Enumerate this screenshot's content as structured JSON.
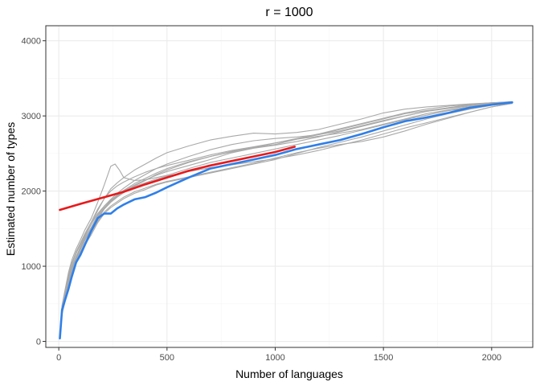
{
  "chart_data": {
    "type": "line",
    "title": "r = 1000",
    "xlabel": "Number of languages",
    "ylabel": "Estimated number of types",
    "xlim": [
      -60,
      2190
    ],
    "ylim": [
      -80,
      4200
    ],
    "x_ticks": [
      0,
      500,
      1000,
      1500,
      2000
    ],
    "y_ticks": [
      0,
      1000,
      2000,
      3000,
      4000
    ],
    "x_tick_labels": [
      "0",
      "500",
      "1000",
      "1500",
      "2000"
    ],
    "y_tick_labels": [
      "0",
      "1000",
      "2000",
      "3000",
      "4000"
    ],
    "grid": true,
    "legend": "none",
    "colors": {
      "samples": "#a9a9a9",
      "mean": "#2f7fe8",
      "extrapolation": "#e8191b",
      "panel_border": "#333333",
      "grid_major": "#ebebeb",
      "grid_minor": "#f5f5f5"
    },
    "series": [
      {
        "role": "sample",
        "color": "#a9a9a9",
        "x": [
          5,
          15,
          30,
          45,
          60,
          80,
          100,
          120,
          150,
          180,
          210,
          240,
          260,
          280,
          300,
          350,
          400,
          450,
          500,
          600,
          700,
          800,
          900,
          1000,
          1100,
          1200,
          1300,
          1400,
          1500,
          1600,
          1700,
          1800,
          1900,
          2000,
          2095
        ],
        "y": [
          80,
          480,
          700,
          920,
          1080,
          1230,
          1350,
          1480,
          1640,
          1850,
          2080,
          2330,
          2360,
          2280,
          2180,
          2140,
          2150,
          2180,
          2210,
          2300,
          2380,
          2440,
          2500,
          2560,
          2620,
          2680,
          2740,
          2810,
          2880,
          2950,
          3010,
          3070,
          3110,
          3150,
          3180
        ]
      },
      {
        "role": "sample",
        "color": "#a9a9a9",
        "x": [
          5,
          15,
          30,
          45,
          60,
          80,
          100,
          120,
          150,
          180,
          210,
          240,
          270,
          300,
          350,
          400,
          450,
          500,
          600,
          700,
          800,
          900,
          1000,
          1100,
          1200,
          1300,
          1400,
          1500,
          1600,
          1700,
          1800,
          1900,
          2000,
          2095
        ],
        "y": [
          60,
          420,
          620,
          820,
          980,
          1120,
          1260,
          1390,
          1560,
          1740,
          1900,
          2030,
          2110,
          2180,
          2280,
          2360,
          2440,
          2510,
          2600,
          2680,
          2730,
          2770,
          2760,
          2780,
          2820,
          2890,
          2960,
          3040,
          3090,
          3120,
          3140,
          3160,
          3175,
          3185
        ]
      },
      {
        "role": "sample",
        "color": "#a9a9a9",
        "x": [
          5,
          15,
          30,
          45,
          60,
          80,
          100,
          120,
          150,
          180,
          210,
          240,
          270,
          300,
          350,
          400,
          450,
          500,
          600,
          700,
          800,
          900,
          1000,
          1100,
          1200,
          1300,
          1400,
          1500,
          1600,
          1700,
          1800,
          1900,
          2000,
          2095
        ],
        "y": [
          50,
          380,
          560,
          760,
          920,
          1060,
          1180,
          1300,
          1460,
          1620,
          1760,
          1850,
          1920,
          1980,
          2070,
          2140,
          2220,
          2280,
          2380,
          2460,
          2530,
          2580,
          2620,
          2690,
          2750,
          2820,
          2890,
          2960,
          3030,
          3070,
          3110,
          3140,
          3165,
          3180
        ]
      },
      {
        "role": "sample",
        "color": "#a9a9a9",
        "x": [
          5,
          15,
          30,
          45,
          60,
          80,
          100,
          120,
          150,
          180,
          210,
          240,
          270,
          300,
          350,
          400,
          450,
          500,
          600,
          700,
          800,
          900,
          1000,
          1100,
          1200,
          1300,
          1400,
          1500,
          1600,
          1700,
          1800,
          1900,
          2000,
          2095
        ],
        "y": [
          70,
          450,
          660,
          870,
          1020,
          1170,
          1290,
          1410,
          1560,
          1700,
          1800,
          1880,
          1940,
          2000,
          2080,
          2150,
          2210,
          2260,
          2340,
          2420,
          2510,
          2570,
          2610,
          2660,
          2720,
          2790,
          2860,
          2930,
          3000,
          3060,
          3100,
          3130,
          3160,
          3175
        ]
      },
      {
        "role": "sample",
        "color": "#a9a9a9",
        "x": [
          5,
          15,
          30,
          45,
          60,
          80,
          100,
          120,
          150,
          180,
          210,
          240,
          270,
          300,
          350,
          400,
          450,
          500,
          600,
          700,
          800,
          900,
          1000,
          1100,
          1200,
          1300,
          1400,
          1500,
          1600,
          1700,
          1800,
          1900,
          2000,
          2095
        ],
        "y": [
          40,
          360,
          540,
          740,
          900,
          1040,
          1160,
          1280,
          1420,
          1580,
          1700,
          1780,
          1840,
          1900,
          1970,
          2020,
          2080,
          2120,
          2180,
          2240,
          2300,
          2360,
          2420,
          2500,
          2580,
          2650,
          2720,
          2800,
          2880,
          2960,
          3030,
          3090,
          3140,
          3170
        ]
      },
      {
        "role": "sample",
        "color": "#a9a9a9",
        "x": [
          5,
          15,
          30,
          45,
          60,
          80,
          100,
          120,
          150,
          180,
          210,
          240,
          270,
          300,
          350,
          400,
          450,
          500,
          600,
          700,
          800,
          900,
          1000,
          1100,
          1200,
          1300,
          1400,
          1500,
          1600,
          1700,
          1800,
          1900,
          2000,
          2095
        ],
        "y": [
          55,
          400,
          600,
          790,
          950,
          1090,
          1220,
          1340,
          1490,
          1650,
          1770,
          1860,
          1930,
          1990,
          2060,
          2110,
          2160,
          2200,
          2260,
          2310,
          2350,
          2390,
          2430,
          2480,
          2540,
          2610,
          2680,
          2760,
          2840,
          2910,
          2980,
          3050,
          3120,
          3170
        ]
      },
      {
        "role": "sample",
        "color": "#a9a9a9",
        "x": [
          5,
          15,
          30,
          45,
          60,
          80,
          100,
          120,
          150,
          180,
          210,
          240,
          270,
          300,
          350,
          400,
          450,
          500,
          600,
          700,
          800,
          900,
          1000,
          1100,
          1200,
          1300,
          1400,
          1500,
          1600,
          1700,
          1800,
          1900,
          2000,
          2095
        ],
        "y": [
          65,
          430,
          640,
          840,
          990,
          1130,
          1250,
          1370,
          1520,
          1680,
          1800,
          1890,
          1970,
          2040,
          2140,
          2220,
          2300,
          2360,
          2460,
          2550,
          2620,
          2670,
          2700,
          2720,
          2750,
          2800,
          2870,
          2940,
          3000,
          3060,
          3110,
          3150,
          3175,
          3190
        ]
      },
      {
        "role": "sample",
        "color": "#a9a9a9",
        "x": [
          5,
          15,
          30,
          45,
          60,
          80,
          100,
          120,
          150,
          180,
          210,
          240,
          270,
          300,
          350,
          400,
          450,
          500,
          600,
          700,
          800,
          900,
          1000,
          1100,
          1200,
          1300,
          1400,
          1500,
          1600,
          1700,
          1800,
          1900,
          2000,
          2095
        ],
        "y": [
          45,
          370,
          570,
          770,
          930,
          1070,
          1190,
          1310,
          1450,
          1600,
          1720,
          1800,
          1860,
          1920,
          1990,
          2040,
          2090,
          2130,
          2190,
          2250,
          2310,
          2370,
          2440,
          2510,
          2570,
          2620,
          2660,
          2720,
          2800,
          2890,
          2970,
          3050,
          3120,
          3165
        ]
      },
      {
        "role": "sample",
        "color": "#a9a9a9",
        "x": [
          5,
          15,
          30,
          45,
          60,
          80,
          100,
          120,
          150,
          180,
          210,
          240,
          270,
          300,
          350,
          400,
          450,
          500,
          600,
          700,
          800,
          900,
          1000,
          1100,
          1200,
          1300,
          1400,
          1500,
          1600,
          1700,
          1800,
          1900,
          2000,
          2095
        ],
        "y": [
          75,
          460,
          680,
          880,
          1040,
          1190,
          1310,
          1430,
          1590,
          1760,
          1900,
          2000,
          2070,
          2120,
          2190,
          2250,
          2300,
          2340,
          2410,
          2480,
          2540,
          2590,
          2640,
          2690,
          2730,
          2770,
          2820,
          2890,
          2960,
          3030,
          3080,
          3120,
          3150,
          3170
        ]
      },
      {
        "role": "sample",
        "color": "#a9a9a9",
        "x": [
          5,
          15,
          30,
          45,
          60,
          80,
          100,
          120,
          150,
          180,
          210,
          240,
          270,
          300,
          350,
          400,
          450,
          500,
          600,
          700,
          800,
          900,
          1000,
          1100,
          1200,
          1300,
          1400,
          1500,
          1600,
          1700,
          1800,
          1900,
          2000,
          2095
        ],
        "y": [
          50,
          390,
          590,
          800,
          960,
          1100,
          1230,
          1350,
          1500,
          1660,
          1780,
          1870,
          1950,
          2010,
          2100,
          2170,
          2240,
          2300,
          2390,
          2460,
          2520,
          2580,
          2640,
          2700,
          2760,
          2830,
          2900,
          2970,
          3040,
          3090,
          3130,
          3155,
          3175,
          3185
        ]
      },
      {
        "role": "mean",
        "color": "#2f7fe8",
        "x": [
          5,
          15,
          30,
          45,
          60,
          80,
          100,
          120,
          150,
          180,
          210,
          240,
          270,
          300,
          350,
          400,
          450,
          500,
          600,
          700,
          800,
          900,
          1000,
          1100,
          1200,
          1300,
          1400,
          1500,
          1600,
          1700,
          1800,
          1900,
          2000,
          2095
        ],
        "y": [
          40,
          420,
          560,
          700,
          860,
          1050,
          1150,
          1280,
          1470,
          1640,
          1700,
          1700,
          1770,
          1820,
          1890,
          1920,
          1980,
          2050,
          2180,
          2300,
          2360,
          2420,
          2480,
          2560,
          2620,
          2680,
          2760,
          2850,
          2930,
          2980,
          3040,
          3110,
          3150,
          3180
        ]
      },
      {
        "role": "extrapolation",
        "color": "#e8191b",
        "x": [
          5,
          100,
          200,
          300,
          400,
          500,
          600,
          700,
          800,
          900,
          1000,
          1090
        ],
        "y": [
          1750,
          1830,
          1910,
          1990,
          2090,
          2180,
          2270,
          2340,
          2400,
          2460,
          2520,
          2590
        ]
      }
    ]
  }
}
